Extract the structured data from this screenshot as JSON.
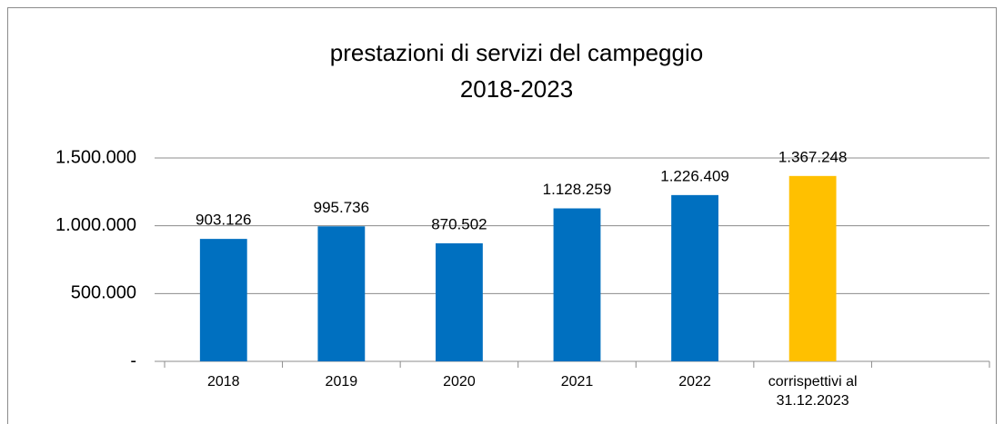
{
  "chart_data": {
    "type": "bar",
    "title": "prestazioni di servizi del campeggio",
    "subtitle": "2018-2023",
    "categories": [
      "2018",
      "2019",
      "2020",
      "2021",
      "2022",
      "corrispettivi al 31.12.2023",
      null
    ],
    "values": [
      903126,
      995736,
      870502,
      1128259,
      1226409,
      1367248,
      null
    ],
    "value_labels": [
      "903.126",
      "995.736",
      "870.502",
      "1.128.259",
      "1.226.409",
      "1.367.248",
      null
    ],
    "colors": [
      "#0070c0",
      "#0070c0",
      "#0070c0",
      "#0070c0",
      "#0070c0",
      "#ffc000",
      null
    ],
    "ylim": [
      0,
      1500000
    ],
    "yticks": [
      {
        "value": 0,
        "label": "-"
      },
      {
        "value": 500000,
        "label": "500.000"
      },
      {
        "value": 1000000,
        "label": "1.000.000"
      },
      {
        "value": 1500000,
        "label": "1.500.000"
      }
    ],
    "grid": true
  }
}
